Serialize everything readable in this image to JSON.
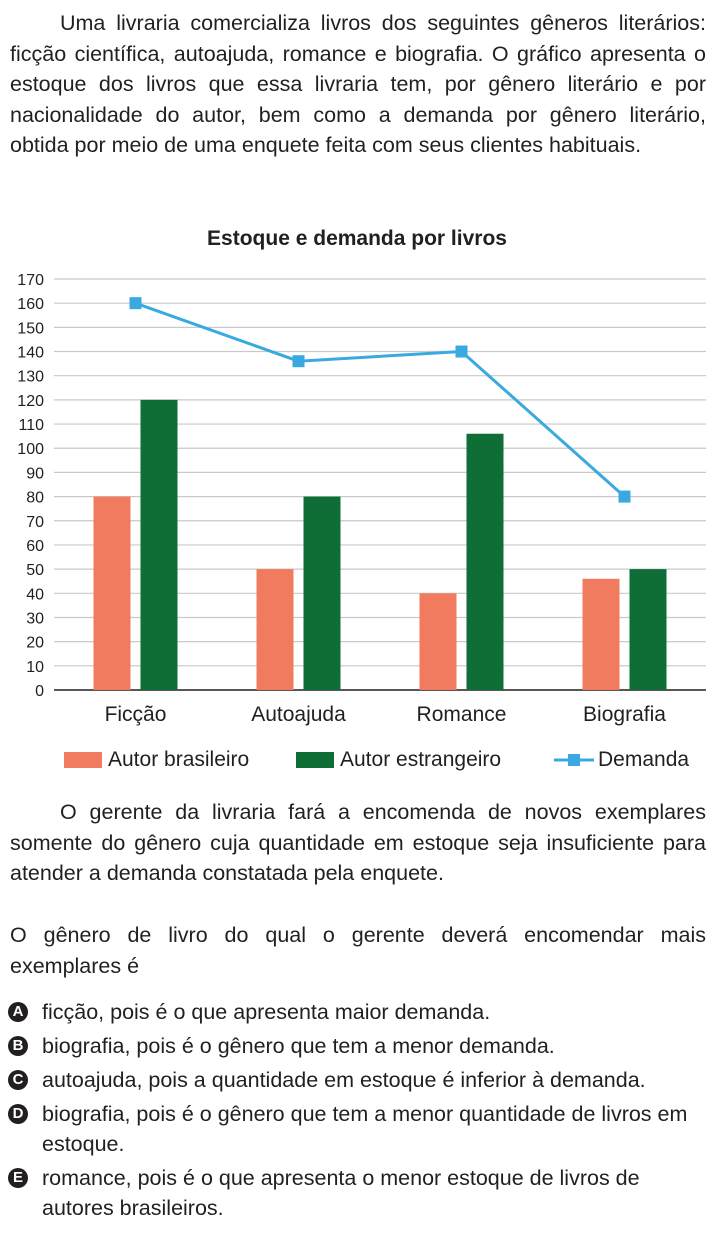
{
  "question": {
    "intro": "Uma livraria comercializa livros dos seguintes gêneros literários: ficção científica, autoajuda, romance e biografia. O gráfico apresenta o estoque dos livros que essa livraria tem, por gênero literário e por nacionalidade do autor, bem como a demanda por gênero literário, obtida por meio de uma enquete feita com seus clientes habituais.",
    "middle": "O gerente da livraria fará a encomenda de novos exemplares somente do gênero cuja quantidade em estoque seja insuficiente para atender a demanda constatada pela enquete.",
    "prompt": "O gênero de livro do qual o gerente deverá encomendar mais exemplares é"
  },
  "options": [
    {
      "letter": "A",
      "text": "ficção, pois é o que apresenta maior demanda."
    },
    {
      "letter": "B",
      "text": "biografia, pois é o gênero que tem a menor demanda."
    },
    {
      "letter": "C",
      "text": "autoajuda, pois a quantidade em estoque é inferior à demanda."
    },
    {
      "letter": "D",
      "text": "biografia, pois é o gênero que tem a menor quantidade de livros em estoque."
    },
    {
      "letter": "E",
      "text": "romance, pois é o que apresenta o menor estoque de livros de autores brasileiros."
    }
  ],
  "chart_data": {
    "type": "bar",
    "title": "Estoque e demanda por livros",
    "categories": [
      "Ficção",
      "Autoajuda",
      "Romance",
      "Biografia"
    ],
    "series": [
      {
        "name": "Autor brasileiro",
        "type": "bar",
        "color": "#f07b5e",
        "values": [
          80,
          50,
          40,
          46
        ]
      },
      {
        "name": "Autor estrangeiro",
        "type": "bar",
        "color": "#0e6e36",
        "values": [
          120,
          80,
          106,
          50
        ]
      },
      {
        "name": "Demanda",
        "type": "line",
        "marker": "square",
        "color": "#39a9e0",
        "values": [
          160,
          136,
          140,
          80
        ]
      }
    ],
    "ylim": [
      0,
      170
    ],
    "yticks": [
      0,
      10,
      20,
      30,
      40,
      50,
      60,
      70,
      80,
      90,
      100,
      110,
      120,
      130,
      140,
      150,
      160,
      170
    ],
    "grid": true,
    "legend_position": "bottom"
  }
}
